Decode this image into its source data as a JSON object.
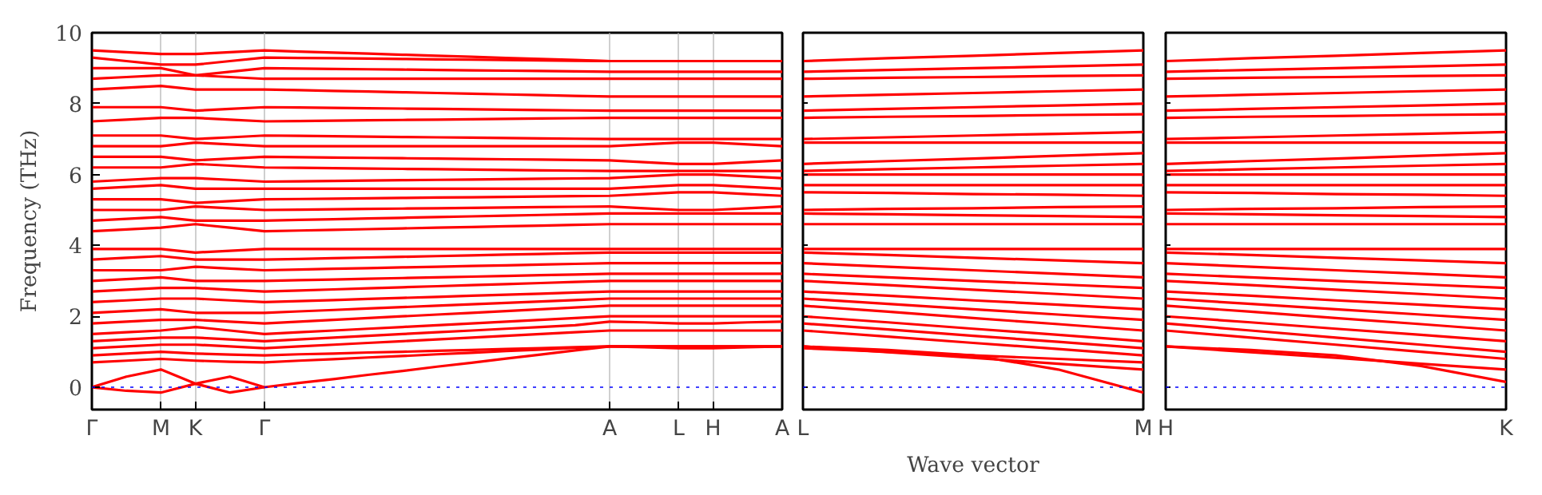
{
  "chart_data": [
    {
      "type": "line",
      "ylabel": "Frequency (THz)",
      "categories": [
        "Γ",
        null,
        "M",
        "K",
        null,
        "Γ",
        null,
        null,
        null,
        null,
        null,
        null,
        null,
        null,
        null,
        "A",
        null,
        "L",
        "H",
        null,
        "A"
      ],
      "ylim": [
        -0.63,
        10
      ],
      "yticks": [
        0,
        2,
        4,
        6,
        8,
        10
      ],
      "grid": "x",
      "ref_lines": [
        {
          "axis": "y",
          "value": 0,
          "color": "#0000ff",
          "line_style": "dotted"
        }
      ],
      "series": [
        {
          "color": "#ff0000",
          "values": [
            0,
            0.3,
            0.5,
            0.1,
            0.3,
            0,
            0.12,
            0.23,
            0.35,
            0.46,
            0.58,
            0.69,
            0.81,
            0.92,
            1.04,
            1.15,
            1.15,
            1.15,
            1.15,
            1.15,
            1.15
          ]
        },
        {
          "color": "#ff0000",
          "values": [
            0,
            -0.1,
            -0.15,
            0.1,
            -0.15,
            0,
            null,
            null,
            null,
            null,
            null,
            null,
            null,
            null,
            null,
            null,
            null,
            null,
            null,
            null,
            null
          ]
        },
        {
          "color": "#ff0000",
          "values": [
            0.7,
            0.75,
            0.8,
            0.75,
            0.72,
            0.7,
            0.75,
            0.79,
            0.84,
            0.88,
            0.93,
            0.97,
            1.02,
            1.06,
            1.11,
            1.15,
            1.15,
            1.15,
            1.15,
            1.15,
            1.15
          ]
        },
        {
          "color": "#ff0000",
          "values": [
            0.9,
            0.95,
            1.0,
            0.95,
            0.92,
            0.9,
            0.93,
            0.95,
            0.98,
            1.0,
            1.03,
            1.05,
            1.08,
            1.1,
            1.13,
            1.15,
            1.13,
            1.1,
            1.1,
            1.13,
            1.15
          ]
        },
        {
          "color": "#ff0000",
          "values": [
            1.1,
            1.15,
            1.2,
            1.2,
            1.15,
            1.1,
            1.15,
            1.2,
            1.25,
            1.3,
            1.35,
            1.4,
            1.45,
            1.5,
            1.55,
            1.6,
            1.6,
            1.6,
            1.6,
            1.6,
            1.6
          ]
        },
        {
          "color": "#ff0000",
          "values": [
            1.3,
            1.35,
            1.4,
            1.4,
            1.35,
            1.3,
            1.35,
            1.4,
            1.45,
            1.5,
            1.55,
            1.6,
            1.65,
            1.7,
            1.75,
            1.85,
            1.83,
            1.8,
            1.8,
            1.83,
            1.85
          ]
        },
        {
          "color": "#ff0000",
          "values": [
            1.5,
            1.55,
            1.6,
            1.7,
            1.6,
            1.5,
            1.55,
            1.6,
            1.65,
            1.7,
            1.75,
            1.8,
            1.85,
            1.9,
            1.95,
            2.0,
            2.0,
            2.0,
            2.0,
            2.0,
            2.0
          ]
        },
        {
          "color": "#ff0000",
          "values": [
            1.8,
            1.85,
            1.9,
            1.9,
            1.85,
            1.8,
            1.85,
            1.9,
            1.95,
            2.0,
            2.05,
            2.1,
            2.15,
            2.2,
            2.25,
            2.3,
            2.3,
            2.3,
            2.3,
            2.3,
            2.3
          ]
        },
        {
          "color": "#ff0000",
          "values": [
            2.1,
            2.15,
            2.2,
            2.1,
            2.1,
            2.1,
            2.14,
            2.18,
            2.22,
            2.26,
            2.3,
            2.34,
            2.38,
            2.42,
            2.46,
            2.5,
            2.5,
            2.5,
            2.5,
            2.5,
            2.5
          ]
        },
        {
          "color": "#ff0000",
          "values": [
            2.4,
            2.45,
            2.5,
            2.5,
            2.45,
            2.4,
            2.43,
            2.46,
            2.49,
            2.52,
            2.55,
            2.58,
            2.61,
            2.64,
            2.67,
            2.7,
            2.7,
            2.7,
            2.7,
            2.7,
            2.7
          ]
        },
        {
          "color": "#ff0000",
          "values": [
            2.7,
            2.75,
            2.8,
            2.8,
            2.75,
            2.7,
            2.73,
            2.76,
            2.79,
            2.82,
            2.85,
            2.88,
            2.91,
            2.94,
            2.97,
            3.0,
            3.0,
            3.0,
            3.0,
            3.0,
            3.0
          ]
        },
        {
          "color": "#ff0000",
          "values": [
            3.0,
            3.05,
            3.1,
            3.0,
            3.0,
            3.0,
            3.02,
            3.04,
            3.06,
            3.08,
            3.1,
            3.12,
            3.14,
            3.16,
            3.18,
            3.2,
            3.2,
            3.2,
            3.2,
            3.2,
            3.2
          ]
        },
        {
          "color": "#ff0000",
          "values": [
            3.3,
            3.3,
            3.3,
            3.4,
            3.35,
            3.3,
            3.32,
            3.34,
            3.36,
            3.38,
            3.4,
            3.42,
            3.44,
            3.46,
            3.48,
            3.5,
            3.5,
            3.5,
            3.5,
            3.5,
            3.5
          ]
        },
        {
          "color": "#ff0000",
          "values": [
            3.6,
            3.65,
            3.7,
            3.6,
            3.6,
            3.6,
            3.62,
            3.64,
            3.66,
            3.68,
            3.7,
            3.72,
            3.74,
            3.76,
            3.78,
            3.8,
            3.8,
            3.8,
            3.8,
            3.8,
            3.8
          ]
        },
        {
          "color": "#ff0000",
          "values": [
            3.9,
            3.9,
            3.9,
            3.8,
            3.85,
            3.9,
            3.9,
            3.9,
            3.9,
            3.9,
            3.9,
            3.9,
            3.9,
            3.9,
            3.9,
            3.9,
            3.9,
            3.9,
            3.9,
            3.9,
            3.9
          ]
        },
        {
          "color": "#ff0000",
          "values": [
            4.4,
            4.45,
            4.5,
            4.6,
            4.5,
            4.4,
            4.42,
            4.44,
            4.46,
            4.48,
            4.5,
            4.52,
            4.54,
            4.56,
            4.58,
            4.6,
            4.6,
            4.6,
            4.6,
            4.6,
            4.6
          ]
        },
        {
          "color": "#ff0000",
          "values": [
            4.7,
            4.75,
            4.8,
            4.7,
            4.7,
            4.7,
            4.72,
            4.74,
            4.76,
            4.78,
            4.8,
            4.82,
            4.84,
            4.86,
            4.88,
            4.9,
            4.9,
            4.9,
            4.9,
            4.9,
            4.9
          ]
        },
        {
          "color": "#ff0000",
          "values": [
            5.0,
            5.0,
            5.0,
            5.1,
            5.05,
            5.0,
            5.01,
            5.02,
            5.03,
            5.04,
            5.05,
            5.06,
            5.07,
            5.08,
            5.09,
            5.1,
            5.05,
            5.0,
            5.0,
            5.05,
            5.1
          ]
        },
        {
          "color": "#ff0000",
          "values": [
            5.3,
            5.3,
            5.3,
            5.2,
            5.25,
            5.3,
            5.31,
            5.32,
            5.33,
            5.34,
            5.35,
            5.36,
            5.37,
            5.38,
            5.39,
            5.4,
            5.45,
            5.5,
            5.5,
            5.45,
            5.4
          ]
        },
        {
          "color": "#ff0000",
          "values": [
            5.6,
            5.65,
            5.7,
            5.6,
            5.6,
            5.6,
            5.6,
            5.6,
            5.6,
            5.6,
            5.6,
            5.6,
            5.6,
            5.6,
            5.6,
            5.6,
            5.65,
            5.7,
            5.7,
            5.65,
            5.6
          ]
        },
        {
          "color": "#ff0000",
          "values": [
            5.8,
            5.85,
            5.9,
            5.9,
            5.85,
            5.8,
            5.81,
            5.82,
            5.83,
            5.84,
            5.85,
            5.86,
            5.87,
            5.88,
            5.89,
            5.9,
            5.95,
            6.0,
            6.0,
            5.95,
            5.9
          ]
        },
        {
          "color": "#ff0000",
          "values": [
            6.2,
            6.2,
            6.2,
            6.3,
            6.25,
            6.2,
            6.19,
            6.18,
            6.17,
            6.16,
            6.15,
            6.14,
            6.13,
            6.12,
            6.11,
            6.1,
            6.1,
            6.1,
            6.1,
            6.1,
            6.1
          ]
        },
        {
          "color": "#ff0000",
          "values": [
            6.5,
            6.5,
            6.5,
            6.4,
            6.45,
            6.5,
            6.49,
            6.48,
            6.47,
            6.46,
            6.45,
            6.44,
            6.43,
            6.42,
            6.41,
            6.4,
            6.35,
            6.3,
            6.3,
            6.35,
            6.4
          ]
        },
        {
          "color": "#ff0000",
          "values": [
            6.8,
            6.8,
            6.8,
            6.9,
            6.85,
            6.8,
            6.8,
            6.8,
            6.8,
            6.8,
            6.8,
            6.8,
            6.8,
            6.8,
            6.8,
            6.8,
            6.85,
            6.9,
            6.9,
            6.85,
            6.8
          ]
        },
        {
          "color": "#ff0000",
          "values": [
            7.1,
            7.1,
            7.1,
            7.0,
            7.05,
            7.1,
            7.09,
            7.08,
            7.07,
            7.06,
            7.05,
            7.04,
            7.03,
            7.02,
            7.01,
            7.0,
            7.0,
            7.0,
            7.0,
            7.0,
            7.0
          ]
        },
        {
          "color": "#ff0000",
          "values": [
            7.5,
            7.55,
            7.6,
            7.6,
            7.55,
            7.5,
            7.51,
            7.52,
            7.53,
            7.54,
            7.55,
            7.56,
            7.57,
            7.58,
            7.59,
            7.6,
            7.6,
            7.6,
            7.6,
            7.6,
            7.6
          ]
        },
        {
          "color": "#ff0000",
          "values": [
            7.9,
            7.9,
            7.9,
            7.8,
            7.85,
            7.9,
            7.89,
            7.88,
            7.87,
            7.86,
            7.85,
            7.84,
            7.83,
            7.82,
            7.81,
            7.8,
            7.8,
            7.8,
            7.8,
            7.8,
            7.8
          ]
        },
        {
          "color": "#ff0000",
          "values": [
            8.4,
            8.45,
            8.5,
            8.4,
            8.4,
            8.4,
            8.38,
            8.36,
            8.34,
            8.32,
            8.3,
            8.28,
            8.26,
            8.24,
            8.22,
            8.2,
            8.2,
            8.2,
            8.2,
            8.2,
            8.2
          ]
        },
        {
          "color": "#ff0000",
          "values": [
            8.7,
            8.75,
            8.8,
            8.8,
            8.75,
            8.7,
            8.7,
            8.7,
            8.7,
            8.7,
            8.7,
            8.7,
            8.7,
            8.7,
            8.7,
            8.7,
            8.7,
            8.7,
            8.7,
            8.7,
            8.7
          ]
        },
        {
          "color": "#ff0000",
          "values": [
            9.0,
            9.0,
            9.0,
            8.8,
            8.9,
            9.0,
            8.99,
            8.98,
            8.97,
            8.96,
            8.95,
            8.94,
            8.93,
            8.92,
            8.91,
            8.9,
            8.9,
            8.9,
            8.9,
            8.9,
            8.9
          ]
        },
        {
          "color": "#ff0000",
          "values": [
            9.3,
            9.2,
            9.1,
            9.1,
            9.2,
            9.3,
            9.29,
            9.28,
            9.27,
            9.26,
            9.25,
            9.24,
            9.23,
            9.22,
            9.21,
            9.2,
            9.2,
            9.2,
            9.2,
            9.2,
            9.2
          ]
        },
        {
          "color": "#ff0000",
          "values": [
            9.5,
            9.45,
            9.4,
            9.4,
            9.45,
            9.5,
            9.47,
            9.44,
            9.41,
            9.38,
            9.35,
            9.32,
            9.29,
            9.26,
            9.23,
            9.2,
            9.2,
            9.2,
            9.2,
            9.2,
            9.2
          ]
        }
      ]
    },
    {
      "type": "line",
      "xlabel": "Wave vector",
      "categories": [
        "L",
        null,
        null,
        null,
        "M"
      ],
      "ylim": [
        -0.63,
        10
      ],
      "yticks": [
        0,
        2,
        4,
        6,
        8,
        10
      ],
      "tick_labels": "x",
      "ref_lines": [
        {
          "axis": "y",
          "value": 0,
          "color": "#0000ff",
          "line_style": "dotted"
        }
      ],
      "series": [
        {
          "color": "#ff0000",
          "values": [
            1.15,
            1.05,
            0.9,
            0.5,
            -0.15
          ]
        },
        {
          "color": "#ff0000",
          "values": [
            1.15,
            0.99,
            0.83,
            0.66,
            0.5
          ]
        },
        {
          "color": "#ff0000",
          "values": [
            1.1,
            1.0,
            0.9,
            0.8,
            0.7
          ]
        },
        {
          "color": "#ff0000",
          "values": [
            1.6,
            1.43,
            1.25,
            1.08,
            0.9
          ]
        },
        {
          "color": "#ff0000",
          "values": [
            1.8,
            1.63,
            1.45,
            1.28,
            1.1
          ]
        },
        {
          "color": "#ff0000",
          "values": [
            2.0,
            1.83,
            1.65,
            1.48,
            1.3
          ]
        },
        {
          "color": "#ff0000",
          "values": [
            2.3,
            2.13,
            1.95,
            1.78,
            1.6
          ]
        },
        {
          "color": "#ff0000",
          "values": [
            2.5,
            2.35,
            2.2,
            2.05,
            1.9
          ]
        },
        {
          "color": "#ff0000",
          "values": [
            2.7,
            2.58,
            2.45,
            2.33,
            2.2
          ]
        },
        {
          "color": "#ff0000",
          "values": [
            3.0,
            2.88,
            2.75,
            2.63,
            2.5
          ]
        },
        {
          "color": "#ff0000",
          "values": [
            3.2,
            3.1,
            3.0,
            2.9,
            2.8
          ]
        },
        {
          "color": "#ff0000",
          "values": [
            3.5,
            3.4,
            3.3,
            3.2,
            3.1
          ]
        },
        {
          "color": "#ff0000",
          "values": [
            3.8,
            3.73,
            3.65,
            3.58,
            3.5
          ]
        },
        {
          "color": "#ff0000",
          "values": [
            3.9,
            3.9,
            3.9,
            3.9,
            3.9
          ]
        },
        {
          "color": "#ff0000",
          "values": [
            4.6,
            4.6,
            4.6,
            4.6,
            4.6
          ]
        },
        {
          "color": "#ff0000",
          "values": [
            4.9,
            4.88,
            4.85,
            4.83,
            4.8
          ]
        },
        {
          "color": "#ff0000",
          "values": [
            5.0,
            5.03,
            5.05,
            5.08,
            5.1
          ]
        },
        {
          "color": "#ff0000",
          "values": [
            5.5,
            5.48,
            5.45,
            5.43,
            5.4
          ]
        },
        {
          "color": "#ff0000",
          "values": [
            5.7,
            5.7,
            5.7,
            5.7,
            5.7
          ]
        },
        {
          "color": "#ff0000",
          "values": [
            6.0,
            6.0,
            6.0,
            6.0,
            6.0
          ]
        },
        {
          "color": "#ff0000",
          "values": [
            6.1,
            6.15,
            6.2,
            6.25,
            6.3
          ]
        },
        {
          "color": "#ff0000",
          "values": [
            6.3,
            6.38,
            6.45,
            6.53,
            6.6
          ]
        },
        {
          "color": "#ff0000",
          "values": [
            6.9,
            6.9,
            6.9,
            6.9,
            6.9
          ]
        },
        {
          "color": "#ff0000",
          "values": [
            7.0,
            7.05,
            7.1,
            7.15,
            7.2
          ]
        },
        {
          "color": "#ff0000",
          "values": [
            7.6,
            7.63,
            7.65,
            7.68,
            7.7
          ]
        },
        {
          "color": "#ff0000",
          "values": [
            7.8,
            7.85,
            7.9,
            7.95,
            8.0
          ]
        },
        {
          "color": "#ff0000",
          "values": [
            8.2,
            8.25,
            8.3,
            8.35,
            8.4
          ]
        },
        {
          "color": "#ff0000",
          "values": [
            8.7,
            8.73,
            8.75,
            8.78,
            8.8
          ]
        },
        {
          "color": "#ff0000",
          "values": [
            8.9,
            8.95,
            9.0,
            9.05,
            9.1
          ]
        },
        {
          "color": "#ff0000",
          "values": [
            9.2,
            9.28,
            9.35,
            9.43,
            9.5
          ]
        }
      ]
    },
    {
      "type": "line",
      "categories": [
        "H",
        null,
        null,
        null,
        "K"
      ],
      "ylim": [
        -0.63,
        10
      ],
      "yticks": [
        0,
        2,
        4,
        6,
        8,
        10
      ],
      "tick_labels": "x",
      "ref_lines": [
        {
          "axis": "y",
          "value": 0,
          "color": "#0000ff",
          "line_style": "dotted"
        }
      ],
      "series": [
        {
          "color": "#ff0000",
          "values": [
            1.15,
            1.05,
            0.9,
            0.6,
            0.15
          ]
        },
        {
          "color": "#ff0000",
          "values": [
            1.15,
            0.99,
            0.83,
            0.66,
            0.5
          ]
        },
        {
          "color": "#ff0000",
          "values": [
            1.6,
            1.4,
            1.2,
            1.0,
            0.8
          ]
        },
        {
          "color": "#ff0000",
          "values": [
            1.8,
            1.6,
            1.4,
            1.2,
            1.0
          ]
        },
        {
          "color": "#ff0000",
          "values": [
            2.0,
            1.83,
            1.65,
            1.48,
            1.3
          ]
        },
        {
          "color": "#ff0000",
          "values": [
            2.3,
            2.13,
            1.95,
            1.78,
            1.6
          ]
        },
        {
          "color": "#ff0000",
          "values": [
            2.5,
            2.35,
            2.2,
            2.05,
            1.9
          ]
        },
        {
          "color": "#ff0000",
          "values": [
            2.7,
            2.58,
            2.45,
            2.33,
            2.2
          ]
        },
        {
          "color": "#ff0000",
          "values": [
            3.0,
            2.88,
            2.75,
            2.63,
            2.5
          ]
        },
        {
          "color": "#ff0000",
          "values": [
            3.2,
            3.1,
            3.0,
            2.9,
            2.8
          ]
        },
        {
          "color": "#ff0000",
          "values": [
            3.5,
            3.4,
            3.3,
            3.2,
            3.1
          ]
        },
        {
          "color": "#ff0000",
          "values": [
            3.8,
            3.73,
            3.65,
            3.58,
            3.5
          ]
        },
        {
          "color": "#ff0000",
          "values": [
            3.9,
            3.9,
            3.9,
            3.9,
            3.9
          ]
        },
        {
          "color": "#ff0000",
          "values": [
            4.6,
            4.6,
            4.6,
            4.6,
            4.6
          ]
        },
        {
          "color": "#ff0000",
          "values": [
            4.9,
            4.88,
            4.85,
            4.83,
            4.8
          ]
        },
        {
          "color": "#ff0000",
          "values": [
            5.0,
            5.03,
            5.05,
            5.08,
            5.1
          ]
        },
        {
          "color": "#ff0000",
          "values": [
            5.5,
            5.48,
            5.45,
            5.43,
            5.4
          ]
        },
        {
          "color": "#ff0000",
          "values": [
            5.7,
            5.7,
            5.7,
            5.7,
            5.7
          ]
        },
        {
          "color": "#ff0000",
          "values": [
            6.0,
            6.0,
            6.0,
            6.0,
            6.0
          ]
        },
        {
          "color": "#ff0000",
          "values": [
            6.1,
            6.15,
            6.2,
            6.25,
            6.3
          ]
        },
        {
          "color": "#ff0000",
          "values": [
            6.3,
            6.38,
            6.45,
            6.53,
            6.6
          ]
        },
        {
          "color": "#ff0000",
          "values": [
            6.9,
            6.9,
            6.9,
            6.9,
            6.9
          ]
        },
        {
          "color": "#ff0000",
          "values": [
            7.0,
            7.05,
            7.1,
            7.15,
            7.2
          ]
        },
        {
          "color": "#ff0000",
          "values": [
            7.6,
            7.63,
            7.65,
            7.68,
            7.7
          ]
        },
        {
          "color": "#ff0000",
          "values": [
            7.8,
            7.85,
            7.9,
            7.95,
            8.0
          ]
        },
        {
          "color": "#ff0000",
          "values": [
            8.2,
            8.25,
            8.3,
            8.35,
            8.4
          ]
        },
        {
          "color": "#ff0000",
          "values": [
            8.7,
            8.73,
            8.75,
            8.78,
            8.8
          ]
        },
        {
          "color": "#ff0000",
          "values": [
            8.9,
            8.95,
            9.0,
            9.05,
            9.1
          ]
        },
        {
          "color": "#ff0000",
          "values": [
            9.2,
            9.28,
            9.35,
            9.43,
            9.5
          ]
        }
      ]
    }
  ]
}
